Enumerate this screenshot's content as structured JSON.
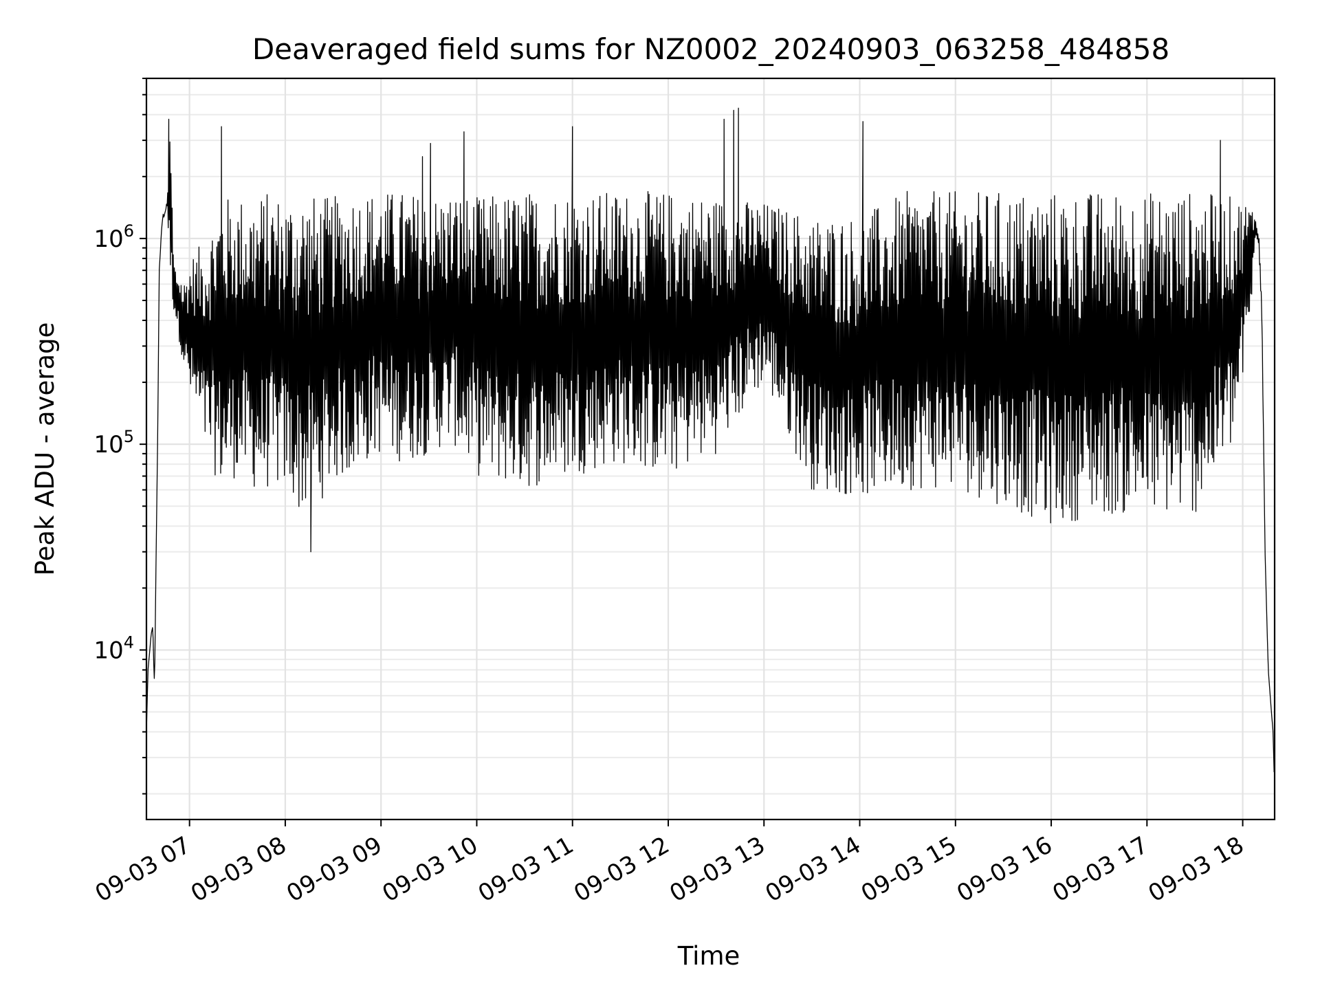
{
  "chart_data": {
    "type": "line",
    "title": "Deaveraged field sums for NZ0002_20240903_063258_484858",
    "xlabel": "Time",
    "ylabel": "Peak ADU - average",
    "yscale": "log",
    "ylim": [
      1500,
      6000000
    ],
    "xlim": [
      "2024-09-03 06:33",
      "2024-09-03 18:20"
    ],
    "x_ticks": [
      "09-03 07",
      "09-03 08",
      "09-03 09",
      "09-03 10",
      "09-03 11",
      "09-03 12",
      "09-03 13",
      "09-03 14",
      "09-03 15",
      "09-03 16",
      "09-03 17",
      "09-03 18"
    ],
    "y_ticks": [
      {
        "value": 10000,
        "base": "10",
        "exp": "4"
      },
      {
        "value": 100000,
        "base": "10",
        "exp": "5"
      },
      {
        "value": 1000000,
        "base": "10",
        "exp": "6"
      }
    ],
    "grid": true,
    "legend": "none",
    "series_color": "#000000",
    "series": [
      {
        "x": [
          "2024-09-03 06:33",
          "2024-09-03 06:34",
          "2024-09-03 06:36",
          "2024-09-03 06:37",
          "2024-09-03 06:38",
          "2024-09-03 06:40",
          "2024-09-03 06:41",
          "2024-09-03 06:43",
          "2024-09-03 06:46",
          "2024-09-03 06:48",
          "2024-09-03 06:50",
          "2024-09-03 06:52",
          "2024-09-03 06:54",
          "2024-09-03 06:56",
          "2024-09-03 06:58",
          "2024-09-03 07:00",
          "2024-09-03 07:10",
          "2024-09-03 07:20",
          "2024-09-03 07:30",
          "2024-09-03 07:40",
          "2024-09-03 07:50",
          "2024-09-03 08:00",
          "2024-09-03 08:10",
          "2024-09-03 08:20",
          "2024-09-03 08:30",
          "2024-09-03 08:40",
          "2024-09-03 08:50",
          "2024-09-03 09:00",
          "2024-09-03 09:15",
          "2024-09-03 09:30",
          "2024-09-03 09:45",
          "2024-09-03 10:00",
          "2024-09-03 10:30",
          "2024-09-03 11:00",
          "2024-09-03 11:30",
          "2024-09-03 12:00",
          "2024-09-03 12:30",
          "2024-09-03 13:00",
          "2024-09-03 13:30",
          "2024-09-03 14:00",
          "2024-09-03 14:30",
          "2024-09-03 15:00",
          "2024-09-03 15:30",
          "2024-09-03 16:00",
          "2024-09-03 16:30",
          "2024-09-03 17:00",
          "2024-09-03 17:30",
          "2024-09-03 17:55",
          "2024-09-03 18:05",
          "2024-09-03 18:08",
          "2024-09-03 18:10",
          "2024-09-03 18:12",
          "2024-09-03 18:14",
          "2024-09-03 18:16",
          "2024-09-03 18:18",
          "2024-09-03 18:19",
          "2024-09-03 18:20"
        ],
        "upper": [
          4000,
          8000,
          12000,
          13000,
          7000,
          100000,
          700000,
          1300000,
          1500000,
          3800000,
          800000,
          700000,
          700000,
          600000,
          700000,
          800000,
          1000000,
          1600000,
          1600000,
          1600000,
          1700000,
          1600000,
          1700000,
          1600000,
          1600000,
          1700000,
          1700000,
          1700000,
          1700000,
          1600000,
          1700000,
          1600000,
          1700000,
          1700000,
          1700000,
          1700000,
          1600000,
          1500000,
          1300000,
          1300000,
          1700000,
          1700000,
          1700000,
          1700000,
          1700000,
          1700000,
          1700000,
          1600000,
          1500000,
          1300000,
          1100000,
          500000,
          30000,
          8000,
          5000,
          4000,
          2000
        ],
        "lower": [
          4000,
          8000,
          12000,
          13000,
          6000,
          100000,
          700000,
          1200000,
          1400000,
          600000,
          450000,
          380000,
          300000,
          250000,
          200000,
          170000,
          90000,
          60000,
          70000,
          60000,
          60000,
          60000,
          45000,
          50000,
          65000,
          70000,
          80000,
          90000,
          80000,
          90000,
          100000,
          70000,
          60000,
          70000,
          80000,
          70000,
          90000,
          200000,
          60000,
          55000,
          60000,
          60000,
          50000,
          40000,
          45000,
          45000,
          45000,
          100000,
          400000,
          1000000,
          900000,
          400000,
          30000,
          8000,
          5000,
          4000,
          2000
        ]
      }
    ],
    "spikes": [
      {
        "x": "2024-09-03 06:47",
        "y": 3800000
      },
      {
        "x": "2024-09-03 07:20",
        "y": 3500000
      },
      {
        "x": "2024-09-03 08:16",
        "y": 30000
      },
      {
        "x": "2024-09-03 09:26",
        "y": 2500000
      },
      {
        "x": "2024-09-03 09:31",
        "y": 2900000
      },
      {
        "x": "2024-09-03 09:52",
        "y": 3300000
      },
      {
        "x": "2024-09-03 11:00",
        "y": 3500000
      },
      {
        "x": "2024-09-03 12:35",
        "y": 3800000
      },
      {
        "x": "2024-09-03 12:41",
        "y": 4200000
      },
      {
        "x": "2024-09-03 12:44",
        "y": 4300000
      },
      {
        "x": "2024-09-03 14:02",
        "y": 3700000
      },
      {
        "x": "2024-09-03 17:46",
        "y": 3000000
      }
    ]
  }
}
